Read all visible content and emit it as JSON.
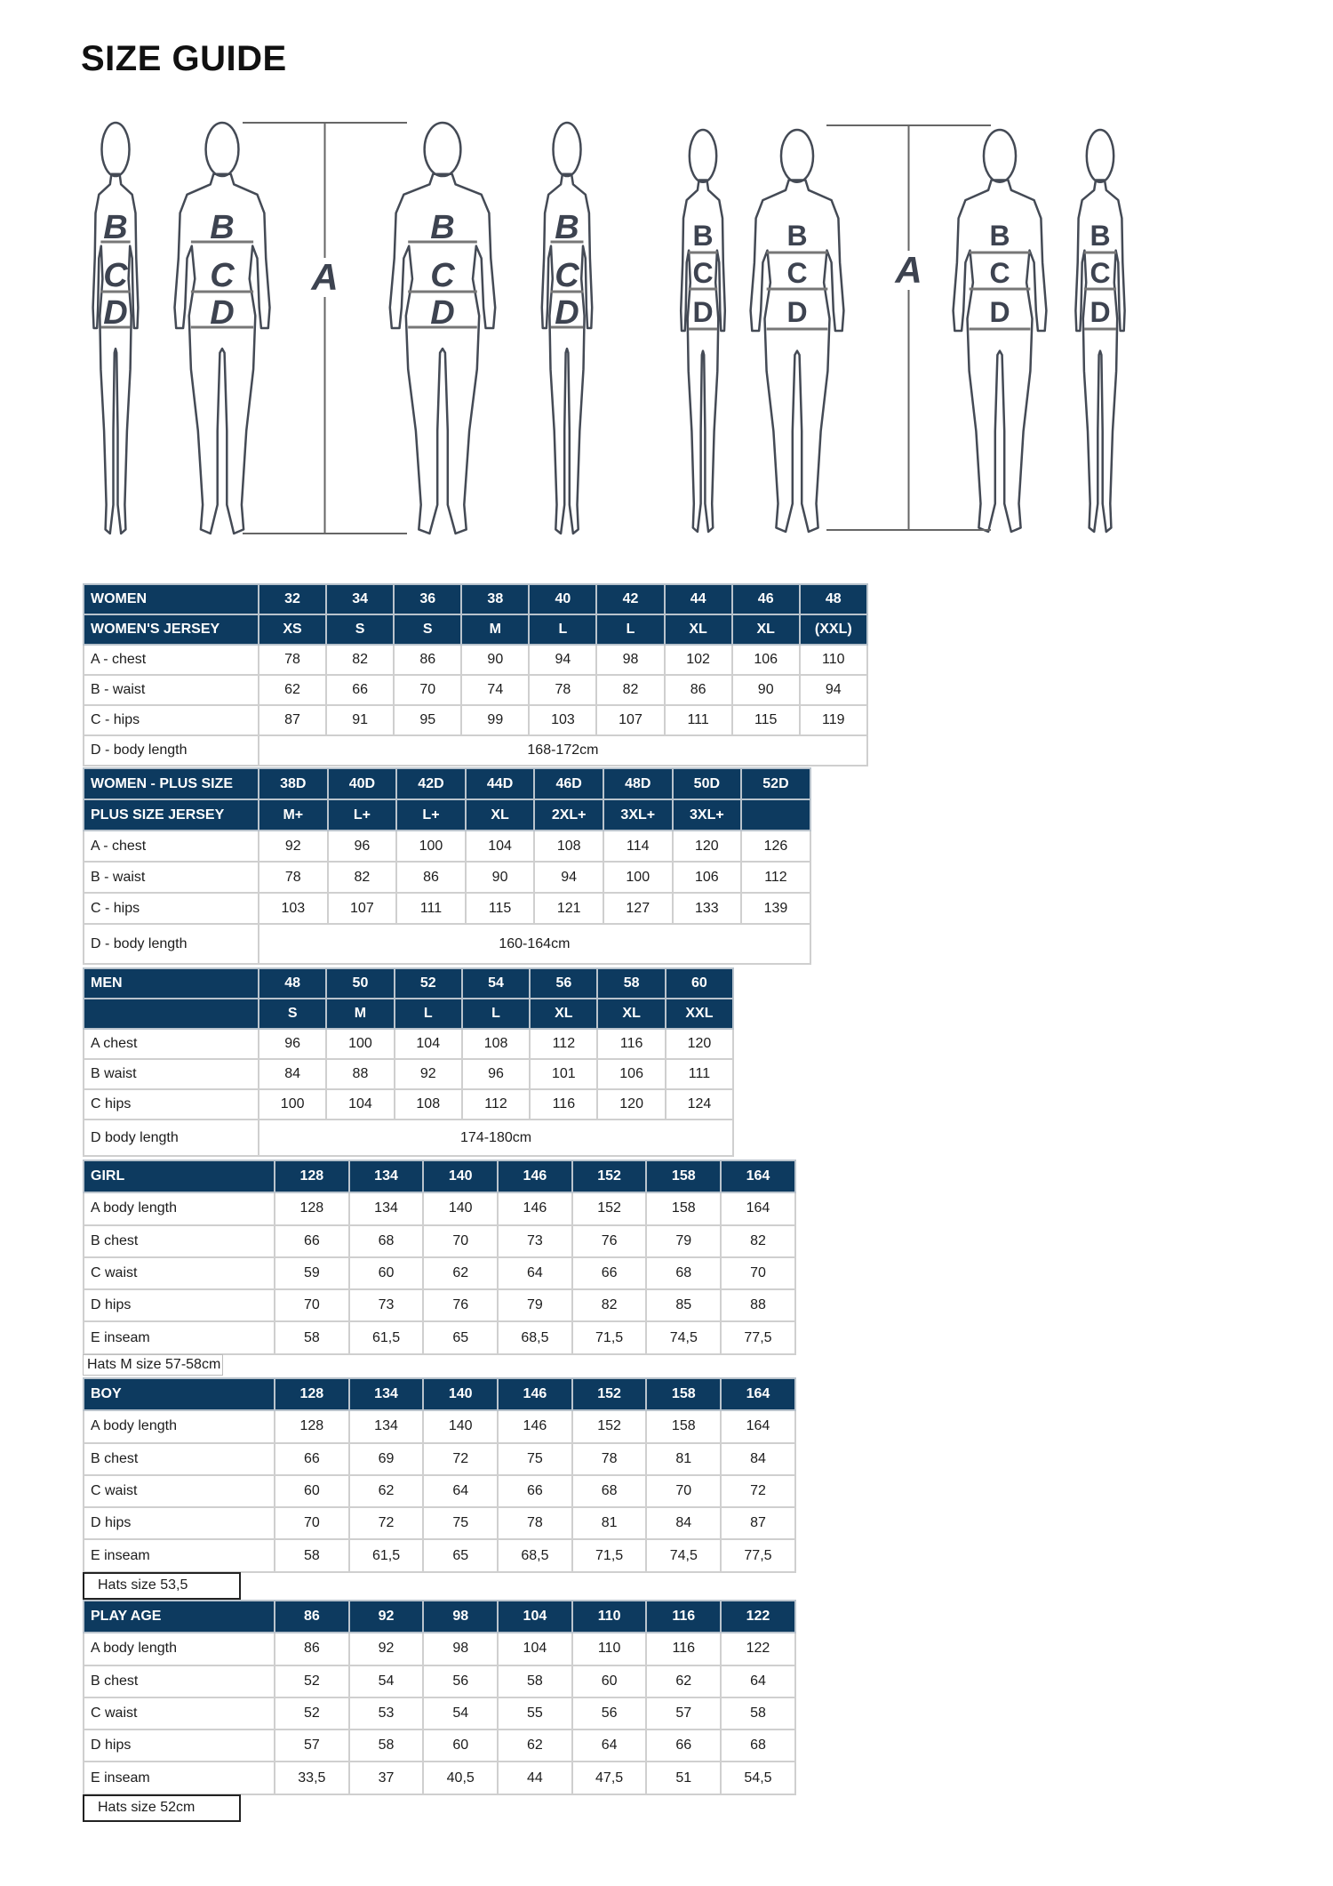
{
  "title": "SIZE GUIDE",
  "figure_labels": {
    "a": "A",
    "b": "B",
    "c": "C",
    "d": "D"
  },
  "colors": {
    "header_bg": "#0d3a5f",
    "header_text": "#ffffff",
    "grid": "#cfcfcf",
    "figure_line": "#444a55"
  },
  "tables": [
    {
      "header_rows": [
        {
          "label": "WOMEN",
          "values": [
            "32",
            "34",
            "36",
            "38",
            "40",
            "42",
            "44",
            "46",
            "48"
          ]
        },
        {
          "label": "WOMEN'S JERSEY",
          "values": [
            "XS",
            "S",
            "S",
            "M",
            "L",
            "L",
            "XL",
            "XL",
            "(XXL)"
          ]
        }
      ],
      "rows": [
        {
          "label": "A - chest",
          "values": [
            "78",
            "82",
            "86",
            "90",
            "94",
            "98",
            "102",
            "106",
            "110"
          ]
        },
        {
          "label": "B - waist",
          "values": [
            "62",
            "66",
            "70",
            "74",
            "78",
            "82",
            "86",
            "90",
            "94"
          ]
        },
        {
          "label": "C - hips",
          "values": [
            "87",
            "91",
            "95",
            "99",
            "103",
            "107",
            "111",
            "115",
            "119"
          ]
        }
      ],
      "span_row": {
        "label": "D - body length",
        "value": "168-172cm"
      }
    },
    {
      "header_rows": [
        {
          "label": "WOMEN - PLUS SIZE",
          "values": [
            "38D",
            "40D",
            "42D",
            "44D",
            "46D",
            "48D",
            "50D",
            "52D"
          ]
        },
        {
          "label": "PLUS SIZE JERSEY",
          "values": [
            "M+",
            "L+",
            "L+",
            "XL",
            "2XL+",
            "3XL+",
            "3XL+",
            ""
          ]
        }
      ],
      "rows": [
        {
          "label": "A - chest",
          "values": [
            "92",
            "96",
            "100",
            "104",
            "108",
            "114",
            "120",
            "126"
          ]
        },
        {
          "label": "B - waist",
          "values": [
            "78",
            "82",
            "86",
            "90",
            "94",
            "100",
            "106",
            "112"
          ]
        },
        {
          "label": "C - hips",
          "values": [
            "103",
            "107",
            "111",
            "115",
            "121",
            "127",
            "133",
            "139"
          ]
        }
      ],
      "span_row": {
        "label": "D - body length",
        "value": "160-164cm"
      }
    },
    {
      "header_rows": [
        {
          "label": "MEN",
          "values": [
            "48",
            "50",
            "52",
            "54",
            "56",
            "58",
            "60"
          ]
        },
        {
          "label": "",
          "values": [
            "S",
            "M",
            "L",
            "L",
            "XL",
            "XL",
            "XXL"
          ]
        }
      ],
      "rows": [
        {
          "label": "A chest",
          "values": [
            "96",
            "100",
            "104",
            "108",
            "112",
            "116",
            "120"
          ]
        },
        {
          "label": "B waist",
          "values": [
            "84",
            "88",
            "92",
            "96",
            "101",
            "106",
            "111"
          ]
        },
        {
          "label": "C hips",
          "values": [
            "100",
            "104",
            "108",
            "112",
            "116",
            "120",
            "124"
          ]
        }
      ],
      "span_row": {
        "label": "D body length",
        "value": "174-180cm"
      }
    },
    {
      "header_rows": [
        {
          "label": "GIRL",
          "values": [
            "128",
            "134",
            "140",
            "146",
            "152",
            "158",
            "164"
          ]
        }
      ],
      "rows": [
        {
          "label": "A body length",
          "values": [
            "128",
            "134",
            "140",
            "146",
            "152",
            "158",
            "164"
          ]
        },
        {
          "label": "B chest",
          "values": [
            "66",
            "68",
            "70",
            "73",
            "76",
            "79",
            "82"
          ]
        },
        {
          "label": "C waist",
          "values": [
            "59",
            "60",
            "62",
            "64",
            "66",
            "68",
            "70"
          ]
        },
        {
          "label": "D hips",
          "values": [
            "70",
            "73",
            "76",
            "79",
            "82",
            "85",
            "88"
          ]
        },
        {
          "label": "E inseam",
          "values": [
            "58",
            "61,5",
            "65",
            "68,5",
            "71,5",
            "74,5",
            "77,5"
          ]
        }
      ],
      "note": "Hats M size 57-58cm"
    },
    {
      "header_rows": [
        {
          "label": "BOY",
          "values": [
            "128",
            "134",
            "140",
            "146",
            "152",
            "158",
            "164"
          ]
        }
      ],
      "rows": [
        {
          "label": "A body length",
          "values": [
            "128",
            "134",
            "140",
            "146",
            "152",
            "158",
            "164"
          ]
        },
        {
          "label": "B chest",
          "values": [
            "66",
            "69",
            "72",
            "75",
            "78",
            "81",
            "84"
          ]
        },
        {
          "label": "C waist",
          "values": [
            "60",
            "62",
            "64",
            "66",
            "68",
            "70",
            "72"
          ]
        },
        {
          "label": "D hips",
          "values": [
            "70",
            "72",
            "75",
            "78",
            "81",
            "84",
            "87"
          ]
        },
        {
          "label": "E inseam",
          "values": [
            "58",
            "61,5",
            "65",
            "68,5",
            "71,5",
            "74,5",
            "77,5"
          ]
        }
      ],
      "note": "Hats size 53,5"
    },
    {
      "header_rows": [
        {
          "label": "PLAY AGE",
          "values": [
            "86",
            "92",
            "98",
            "104",
            "110",
            "116",
            "122"
          ]
        }
      ],
      "rows": [
        {
          "label": "A body length",
          "values": [
            "86",
            "92",
            "98",
            "104",
            "110",
            "116",
            "122"
          ]
        },
        {
          "label": "B chest",
          "values": [
            "52",
            "54",
            "56",
            "58",
            "60",
            "62",
            "64"
          ]
        },
        {
          "label": "C waist",
          "values": [
            "52",
            "53",
            "54",
            "55",
            "56",
            "57",
            "58"
          ]
        },
        {
          "label": "D hips",
          "values": [
            "57",
            "58",
            "60",
            "62",
            "64",
            "66",
            "68"
          ]
        },
        {
          "label": "E inseam",
          "values": [
            "33,5",
            "37",
            "40,5",
            "44",
            "47,5",
            "51",
            "54,5"
          ]
        }
      ],
      "note": "Hats size 52cm"
    }
  ]
}
